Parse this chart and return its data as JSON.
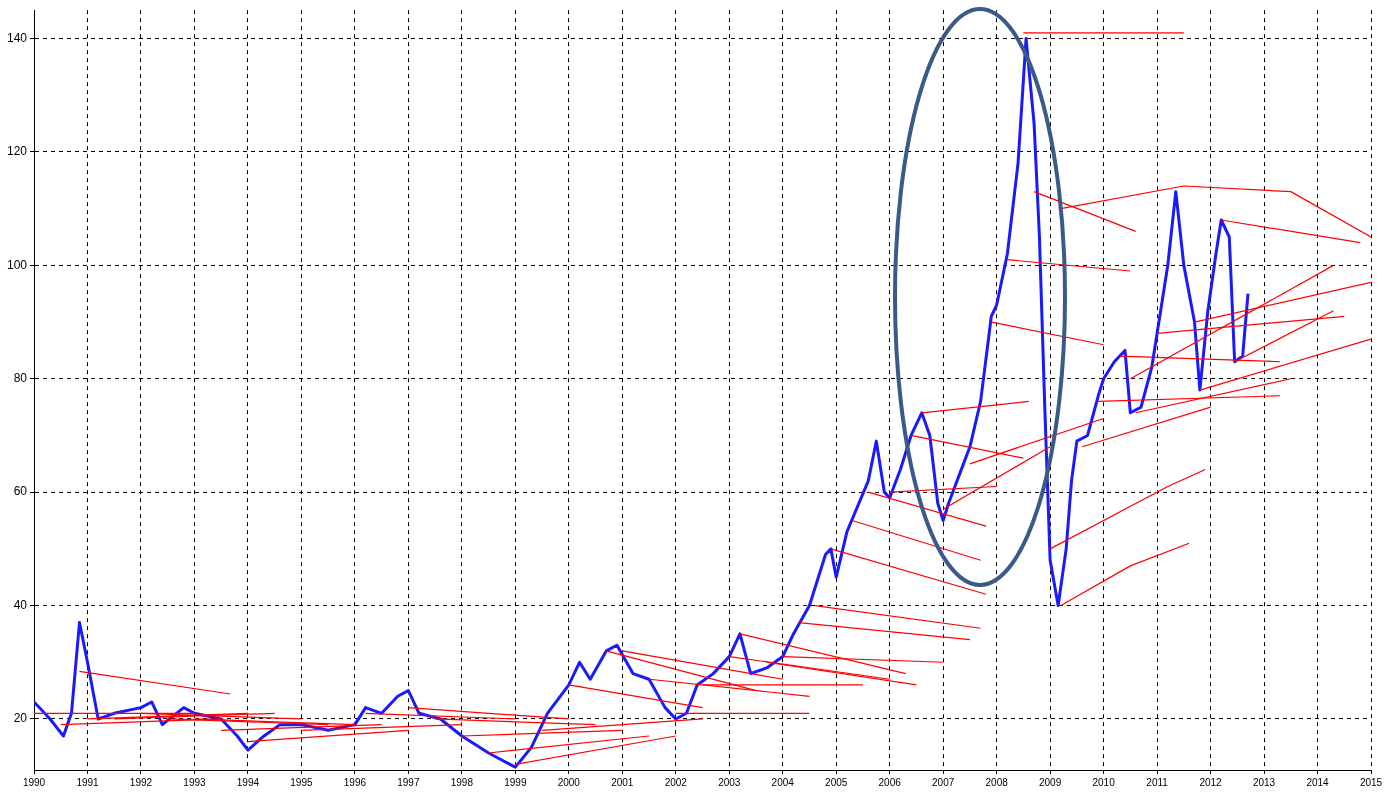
{
  "chart_data": {
    "type": "line",
    "xlim": [
      1990,
      2015
    ],
    "xticks": [
      1990,
      1991,
      1992,
      1993,
      1994,
      1995,
      1996,
      1997,
      1998,
      1999,
      2000,
      2001,
      2002,
      2003,
      2004,
      2005,
      2006,
      2007,
      2008,
      2009,
      2010,
      2011,
      2012,
      2013,
      2014,
      2015
    ],
    "ylim": [
      11,
      145
    ],
    "yticks": [
      20,
      40,
      60,
      80,
      100,
      120,
      140
    ],
    "grid": true,
    "legend": false,
    "marker": "none",
    "line_style": "solid",
    "series": [
      {
        "color": "#1a1aff",
        "x": [
          1990.0,
          1990.3,
          1990.55,
          1990.7,
          1990.85,
          1991.0,
          1991.2,
          1991.5,
          1992.0,
          1992.2,
          1992.4,
          1992.8,
          1993.0,
          1993.5,
          1993.8,
          1994.0,
          1994.3,
          1994.6,
          1995.0,
          1995.5,
          1996.0,
          1996.2,
          1996.5,
          1996.8,
          1997.0,
          1997.2,
          1997.6,
          1998.0,
          1998.5,
          1998.9,
          1999.0,
          1999.3,
          1999.6,
          2000.0,
          2000.2,
          2000.4,
          2000.7,
          2000.9,
          2001.2,
          2001.5,
          2001.8,
          2002.0,
          2002.2,
          2002.4,
          2002.7,
          2003.0,
          2003.2,
          2003.4,
          2003.7,
          2004.0,
          2004.2,
          2004.5,
          2004.8,
          2004.9,
          2005.0,
          2005.2,
          2005.6,
          2005.75,
          2005.9,
          2006.0,
          2006.2,
          2006.4,
          2006.6,
          2006.75,
          2006.9,
          2007.0,
          2007.1,
          2007.3,
          2007.5,
          2007.7,
          2007.9,
          2008.0,
          2008.2,
          2008.4,
          2008.55,
          2008.7,
          2008.8,
          2008.9,
          2009.0,
          2009.15,
          2009.3,
          2009.4,
          2009.5,
          2009.7,
          2009.9,
          2010.0,
          2010.2,
          2010.4,
          2010.5,
          2010.7,
          2010.9,
          2011.0,
          2011.2,
          2011.35,
          2011.5,
          2011.7,
          2011.8,
          2011.95,
          2012.1,
          2012.2,
          2012.35,
          2012.45,
          2012.6,
          2012.7
        ],
        "values": [
          23,
          20,
          17,
          21,
          37,
          30,
          20,
          21,
          22,
          23,
          19,
          22,
          21,
          20,
          17,
          14.5,
          17,
          19,
          19,
          18,
          19,
          22,
          21,
          24,
          25,
          21,
          20,
          17,
          14,
          12,
          11.5,
          15,
          21,
          26,
          30,
          27,
          32,
          33,
          28,
          27,
          22,
          20,
          21,
          26,
          28,
          31,
          35,
          28,
          29,
          31,
          35,
          40,
          49,
          50,
          45,
          53,
          62,
          69,
          60,
          59,
          64,
          70,
          74,
          70,
          58,
          55,
          58,
          63,
          68,
          76,
          91,
          93,
          102,
          118,
          140,
          125,
          105,
          75,
          48,
          40,
          50,
          62,
          69,
          70,
          77,
          80,
          83,
          85,
          74,
          75,
          82,
          88,
          100,
          113,
          100,
          90,
          78,
          92,
          102,
          108,
          105,
          83,
          84,
          95
        ]
      },
      {
        "color": "#ff0000",
        "x": [
          1990.85,
          1993.67
        ],
        "values": [
          28.4,
          24.4
        ]
      },
      {
        "color": "#ff0000",
        "x": [
          1990.0,
          1993.0
        ],
        "values": [
          21,
          21
        ]
      },
      {
        "color": "#ff0000",
        "x": [
          1990.5,
          1993.5
        ],
        "values": [
          19,
          20
        ]
      },
      {
        "color": "#ff0000",
        "x": [
          1991.0,
          1994.0
        ],
        "values": [
          20,
          21
        ]
      },
      {
        "color": "#ff0000",
        "x": [
          1991.5,
          1994.5
        ],
        "values": [
          20,
          21
        ]
      },
      {
        "color": "#ff0000",
        "x": [
          1992.0,
          1995.0
        ],
        "values": [
          21,
          20
        ]
      },
      {
        "color": "#ff0000",
        "x": [
          1992.5,
          1995.5
        ],
        "values": [
          20,
          19
        ]
      },
      {
        "color": "#ff0000",
        "x": [
          1993.0,
          1996.0
        ],
        "values": [
          20,
          19
        ]
      },
      {
        "color": "#ff0000",
        "x": [
          1993.5,
          1996.5
        ],
        "values": [
          18,
          19
        ]
      },
      {
        "color": "#ff0000",
        "x": [
          1994.0,
          1997.0
        ],
        "values": [
          16,
          18
        ]
      },
      {
        "color": "#ff0000",
        "x": [
          1995.0,
          1998.0
        ],
        "values": [
          18,
          19
        ]
      },
      {
        "color": "#ff0000",
        "x": [
          1996.2,
          1999.0
        ],
        "values": [
          21,
          20
        ]
      },
      {
        "color": "#ff0000",
        "x": [
          1997.0,
          2000.0
        ],
        "values": [
          22,
          20
        ]
      },
      {
        "color": "#ff0000",
        "x": [
          1997.5,
          2000.5
        ],
        "values": [
          20,
          19
        ]
      },
      {
        "color": "#ff0000",
        "x": [
          1998.0,
          2001.0
        ],
        "values": [
          17,
          18
        ]
      },
      {
        "color": "#ff0000",
        "x": [
          1998.5,
          2001.5
        ],
        "values": [
          14,
          17
        ]
      },
      {
        "color": "#ff0000",
        "x": [
          1999.0,
          2002.0
        ],
        "values": [
          12,
          17
        ]
      },
      {
        "color": "#ff0000",
        "x": [
          1999.5,
          2002.5
        ],
        "values": [
          18,
          20
        ]
      },
      {
        "color": "#ff0000",
        "x": [
          2000.0,
          2002.5
        ],
        "values": [
          26,
          22
        ]
      },
      {
        "color": "#ff0000",
        "x": [
          2000.7,
          2003.5
        ],
        "values": [
          32,
          25
        ]
      },
      {
        "color": "#ff0000",
        "x": [
          2001.0,
          2004.0
        ],
        "values": [
          32,
          27
        ]
      },
      {
        "color": "#ff0000",
        "x": [
          2001.5,
          2004.5
        ],
        "values": [
          27,
          24
        ]
      },
      {
        "color": "#ff0000",
        "x": [
          2002.0,
          2004.5
        ],
        "values": [
          21,
          21
        ]
      },
      {
        "color": "#ff0000",
        "x": [
          2002.5,
          2005.5
        ],
        "values": [
          26,
          26
        ]
      },
      {
        "color": "#ff0000",
        "x": [
          2003.0,
          2006.0
        ],
        "values": [
          31,
          27
        ]
      },
      {
        "color": "#ff0000",
        "x": [
          2003.2,
          2006.3
        ],
        "values": [
          35,
          28
        ]
      },
      {
        "color": "#ff0000",
        "x": [
          2003.7,
          2006.5
        ],
        "values": [
          30,
          26
        ]
      },
      {
        "color": "#ff0000",
        "x": [
          2004.0,
          2007.0
        ],
        "values": [
          31,
          30
        ]
      },
      {
        "color": "#ff0000",
        "x": [
          2004.3,
          2007.5
        ],
        "values": [
          37,
          34
        ]
      },
      {
        "color": "#ff0000",
        "x": [
          2004.6,
          2007.7
        ],
        "values": [
          40,
          36
        ]
      },
      {
        "color": "#ff0000",
        "x": [
          2004.9,
          2007.8
        ],
        "values": [
          50,
          42
        ]
      },
      {
        "color": "#ff0000",
        "x": [
          2005.3,
          2007.7
        ],
        "values": [
          55,
          48
        ]
      },
      {
        "color": "#ff0000",
        "x": [
          2005.6,
          2007.8
        ],
        "values": [
          60,
          54
        ]
      },
      {
        "color": "#ff0000",
        "x": [
          2006.0,
          2008.0
        ],
        "values": [
          60,
          61
        ]
      },
      {
        "color": "#ff0000",
        "x": [
          2006.4,
          2008.5
        ],
        "values": [
          70,
          66
        ]
      },
      {
        "color": "#ff0000",
        "x": [
          2006.6,
          2008.6
        ],
        "values": [
          74,
          76
        ]
      },
      {
        "color": "#ff0000",
        "x": [
          2007.0,
          2009.0
        ],
        "values": [
          57,
          68
        ]
      },
      {
        "color": "#ff0000",
        "x": [
          2007.5,
          2010.0
        ],
        "values": [
          65,
          73
        ]
      },
      {
        "color": "#ff0000",
        "x": [
          2007.9,
          2010.0
        ],
        "values": [
          90,
          86
        ]
      },
      {
        "color": "#ff0000",
        "x": [
          2008.2,
          2010.5
        ],
        "values": [
          101,
          99
        ]
      },
      {
        "color": "#ff0000",
        "x": [
          2008.5,
          2011.5
        ],
        "values": [
          141,
          141
        ]
      },
      {
        "color": "#ff0000",
        "x": [
          2008.7,
          2010.6
        ],
        "values": [
          113,
          106
        ]
      },
      {
        "color": "#ff0000",
        "x": [
          2009.2,
          2011.5,
          2013.5,
          2015.0
        ],
        "values": [
          110,
          114,
          113,
          105
        ]
      },
      {
        "color": "#ff0000",
        "x": [
          2009.0,
          2011.2,
          2011.9
        ],
        "values": [
          50,
          61,
          64
        ]
      },
      {
        "color": "#ff0000",
        "x": [
          2009.2,
          2010.5,
          2011.6
        ],
        "values": [
          40,
          47,
          51
        ]
      },
      {
        "color": "#ff0000",
        "x": [
          2009.6,
          2012.0
        ],
        "values": [
          68,
          75
        ]
      },
      {
        "color": "#ff0000",
        "x": [
          2009.9,
          2013.3
        ],
        "values": [
          76,
          77
        ]
      },
      {
        "color": "#ff0000",
        "x": [
          2010.3,
          2013.3
        ],
        "values": [
          84,
          83
        ]
      },
      {
        "color": "#ff0000",
        "x": [
          2010.6,
          2013.5
        ],
        "values": [
          74,
          80
        ]
      },
      {
        "color": "#ff0000",
        "x": [
          2010.5,
          2014.3
        ],
        "values": [
          80,
          100
        ]
      },
      {
        "color": "#ff0000",
        "x": [
          2011.0,
          2014.5
        ],
        "values": [
          88,
          91
        ]
      },
      {
        "color": "#ff0000",
        "x": [
          2011.7,
          2015.0
        ],
        "values": [
          90,
          97
        ]
      },
      {
        "color": "#ff0000",
        "x": [
          2011.8,
          2015.0
        ],
        "values": [
          78,
          87
        ]
      },
      {
        "color": "#ff0000",
        "x": [
          2012.2,
          2014.8
        ],
        "values": [
          108,
          104
        ]
      },
      {
        "color": "#ff0000",
        "x": [
          2012.45,
          2014.3
        ],
        "values": [
          83,
          92
        ]
      }
    ]
  }
}
